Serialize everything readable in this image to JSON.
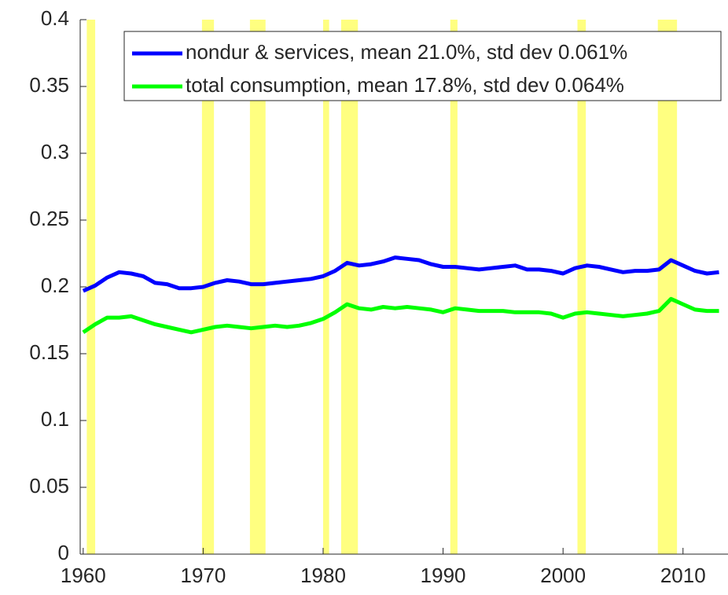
{
  "chart_data": {
    "type": "line",
    "x": [
      1960,
      1961,
      1962,
      1963,
      1964,
      1965,
      1966,
      1967,
      1968,
      1969,
      1970,
      1971,
      1972,
      1973,
      1974,
      1975,
      1976,
      1977,
      1978,
      1979,
      1980,
      1981,
      1982,
      1983,
      1984,
      1985,
      1986,
      1987,
      1988,
      1989,
      1990,
      1991,
      1992,
      1993,
      1994,
      1995,
      1996,
      1997,
      1998,
      1999,
      2000,
      2001,
      2002,
      2003,
      2004,
      2005,
      2006,
      2007,
      2008,
      2009,
      2010,
      2011,
      2012,
      2013
    ],
    "series": [
      {
        "name": "nondur & services, mean 21.0%, std dev 0.061%",
        "color": "#0000ff",
        "values": [
          0.197,
          0.201,
          0.207,
          0.211,
          0.21,
          0.208,
          0.203,
          0.202,
          0.199,
          0.199,
          0.2,
          0.203,
          0.205,
          0.204,
          0.202,
          0.202,
          0.203,
          0.204,
          0.205,
          0.206,
          0.208,
          0.212,
          0.218,
          0.216,
          0.217,
          0.219,
          0.222,
          0.221,
          0.22,
          0.217,
          0.215,
          0.215,
          0.214,
          0.213,
          0.214,
          0.215,
          0.216,
          0.213,
          0.213,
          0.212,
          0.21,
          0.214,
          0.216,
          0.215,
          0.213,
          0.211,
          0.212,
          0.212,
          0.213,
          0.22,
          0.216,
          0.212,
          0.21,
          0.211
        ]
      },
      {
        "name": "total consumption, mean 17.8%, std dev 0.064%",
        "color": "#00ff00",
        "values": [
          0.166,
          0.172,
          0.177,
          0.177,
          0.178,
          0.175,
          0.172,
          0.17,
          0.168,
          0.166,
          0.168,
          0.17,
          0.171,
          0.17,
          0.169,
          0.17,
          0.171,
          0.17,
          0.171,
          0.173,
          0.176,
          0.181,
          0.187,
          0.184,
          0.183,
          0.185,
          0.184,
          0.185,
          0.184,
          0.183,
          0.181,
          0.184,
          0.183,
          0.182,
          0.182,
          0.182,
          0.181,
          0.181,
          0.181,
          0.18,
          0.177,
          0.18,
          0.181,
          0.18,
          0.179,
          0.178,
          0.179,
          0.18,
          0.182,
          0.191,
          0.187,
          0.183,
          0.182,
          0.182
        ]
      }
    ],
    "recessions": [
      [
        1960.3,
        1961.0
      ],
      [
        1969.9,
        1970.9
      ],
      [
        1973.9,
        1975.2
      ],
      [
        1980.0,
        1980.5
      ],
      [
        1981.5,
        1982.9
      ],
      [
        1990.6,
        1991.2
      ],
      [
        2001.2,
        2001.9
      ],
      [
        2007.9,
        2009.5
      ]
    ],
    "recession_color": "#ffff80",
    "xlim": [
      1959.75,
      2013.75
    ],
    "xticks": [
      1960,
      1970,
      1980,
      1990,
      2000,
      2010
    ],
    "ylim": [
      0,
      0.4
    ],
    "yticks": [
      0,
      0.05,
      0.1,
      0.15,
      0.2,
      0.25,
      0.3,
      0.35,
      0.4
    ],
    "legend": "northeast"
  }
}
